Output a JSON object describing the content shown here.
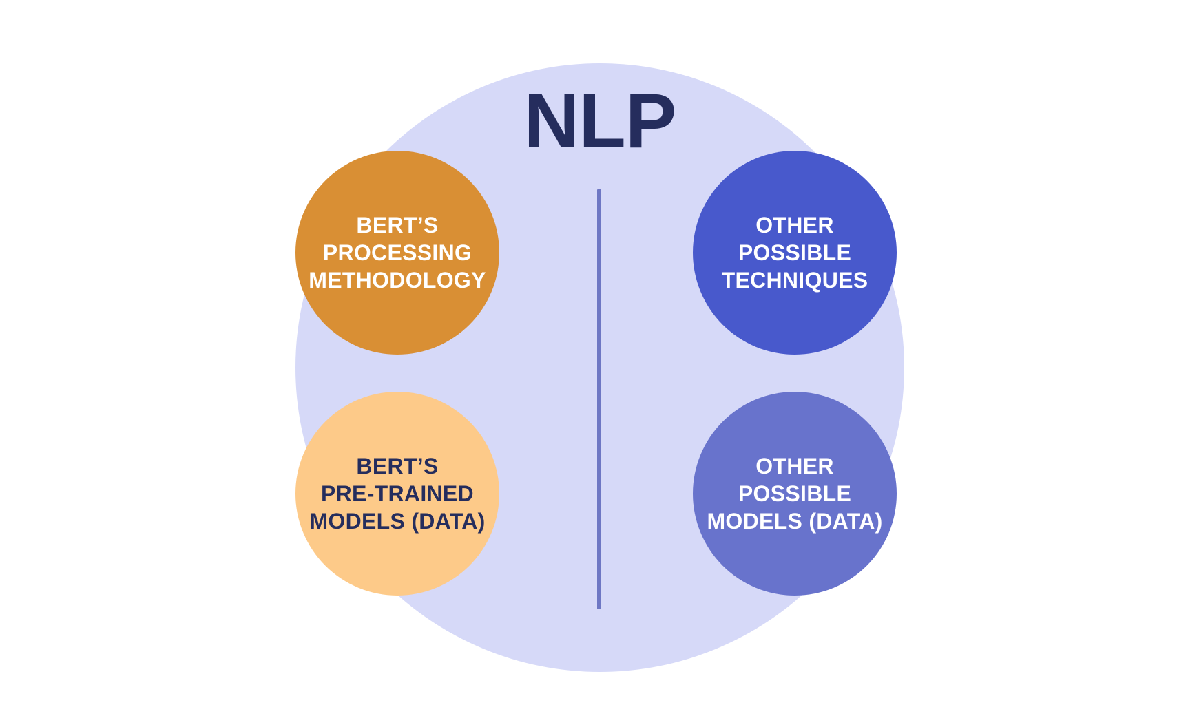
{
  "title": "NLP",
  "colors": {
    "background": "#ffffff",
    "outer_circle": "#d6d9f8",
    "title_text": "#252d5d",
    "divider": "#6e77c4",
    "dark_text": "#252d5d",
    "light_text": "#ffffff"
  },
  "nodes": [
    {
      "label": "BERT’S\nPROCESSING\nMETHODOLOGY",
      "fill": "#d98f34",
      "text_color": "#ffffff"
    },
    {
      "label": "OTHER\nPOSSIBLE\nTECHNIQUES",
      "fill": "#4859cc",
      "text_color": "#ffffff"
    },
    {
      "label": "BERT’S\nPRE-TRAINED\nMODELS (DATA)",
      "fill": "#fdca89",
      "text_color": "#252d5d"
    },
    {
      "label": "OTHER\nPOSSIBLE\nMODELS (DATA)",
      "fill": "#6873cc",
      "text_color": "#ffffff"
    }
  ]
}
